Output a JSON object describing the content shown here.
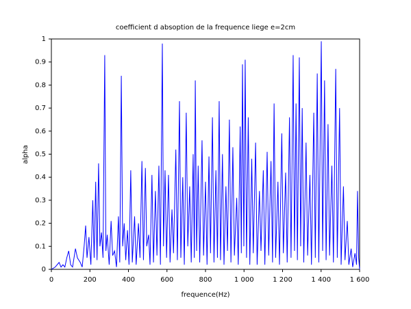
{
  "chart_data": {
    "type": "line",
    "title": "coefficient d absoption de la frequence liege e=2cm",
    "x_label": "frequence(Hz)",
    "y_label": "alpha",
    "xlim": [
      0,
      1600
    ],
    "ylim": [
      0,
      1
    ],
    "xticks": [
      0,
      200,
      400,
      600,
      800,
      {
        "value": 1000,
        "label": "1 000"
      },
      {
        "value": 1200,
        "label": "1 200"
      },
      {
        "value": 1400,
        "label": "1 400"
      },
      {
        "value": 1600,
        "label": "1 600"
      }
    ],
    "yticks": [
      0,
      0.1,
      0.2,
      0.3,
      0.4,
      0.5,
      0.6,
      0.7,
      0.8,
      0.9,
      1
    ],
    "x": [
      0,
      20,
      40,
      50,
      60,
      70,
      80,
      90,
      100,
      110,
      125,
      135,
      150,
      160,
      170,
      178,
      185,
      195,
      205,
      215,
      222,
      230,
      237,
      245,
      252,
      260,
      268,
      277,
      283,
      290,
      300,
      310,
      318,
      328,
      338,
      348,
      355,
      363,
      370,
      378,
      386,
      395,
      403,
      412,
      420,
      432,
      440,
      452,
      460,
      470,
      478,
      488,
      495,
      505,
      512,
      522,
      530,
      540,
      548,
      558,
      566,
      576,
      582,
      590,
      598,
      608,
      616,
      626,
      634,
      646,
      654,
      665,
      672,
      682,
      690,
      700,
      708,
      718,
      726,
      736,
      742,
      747,
      754,
      762,
      770,
      782,
      790,
      800,
      808,
      818,
      826,
      836,
      844,
      854,
      862,
      871,
      878,
      888,
      896,
      906,
      914,
      924,
      932,
      942,
      950,
      962,
      970,
      980,
      986,
      992,
      999,
      1006,
      1013,
      1022,
      1030,
      1040,
      1048,
      1060,
      1068,
      1080,
      1088,
      1100,
      1108,
      1120,
      1128,
      1140,
      1148,
      1156,
      1164,
      1176,
      1184,
      1196,
      1204,
      1216,
      1224,
      1236,
      1244,
      1255,
      1262,
      1270,
      1277,
      1287,
      1294,
      1302,
      1310,
      1322,
      1330,
      1342,
      1350,
      1362,
      1370,
      1380,
      1388,
      1401,
      1408,
      1418,
      1426,
      1436,
      1444,
      1456,
      1464,
      1476,
      1484,
      1496,
      1504,
      1516,
      1524,
      1536,
      1544,
      1556,
      1564,
      1576,
      1584,
      1589,
      1595,
      1600
    ],
    "series": [
      {
        "color": "#0000ff",
        "values": [
          0,
          0.01,
          0.03,
          0.01,
          0.02,
          0.01,
          0.05,
          0.08,
          0.02,
          0.01,
          0.09,
          0.05,
          0.03,
          0.01,
          0.1,
          0.19,
          0.05,
          0.14,
          0.02,
          0.3,
          0.05,
          0.38,
          0.04,
          0.46,
          0.1,
          0.16,
          0.05,
          0.93,
          0.08,
          0.15,
          0.02,
          0.21,
          0.06,
          0.08,
          0.01,
          0.23,
          0.03,
          0.84,
          0.1,
          0.2,
          0.04,
          0.17,
          0.02,
          0.43,
          0.03,
          0.23,
          0.02,
          0.2,
          0.05,
          0.47,
          0.04,
          0.44,
          0.1,
          0.15,
          0.02,
          0.41,
          0.03,
          0.34,
          0.06,
          0.45,
          0.02,
          0.98,
          0.1,
          0.43,
          0.05,
          0.41,
          0.03,
          0.26,
          0.07,
          0.52,
          0.04,
          0.73,
          0.05,
          0.4,
          0.02,
          0.68,
          0.1,
          0.36,
          0.03,
          0.5,
          0.05,
          0.82,
          0.08,
          0.45,
          0.03,
          0.56,
          0.06,
          0.38,
          0.02,
          0.49,
          0.07,
          0.66,
          0.03,
          0.43,
          0.05,
          0.73,
          0.04,
          0.5,
          0.02,
          0.36,
          0.08,
          0.65,
          0.03,
          0.53,
          0.06,
          0.31,
          0.02,
          0.62,
          0.07,
          0.89,
          0.1,
          0.91,
          0.05,
          0.66,
          0.02,
          0.48,
          0.07,
          0.55,
          0.02,
          0.34,
          0.08,
          0.43,
          0.02,
          0.51,
          0.06,
          0.47,
          0.03,
          0.72,
          0.05,
          0.38,
          0.02,
          0.59,
          0.07,
          0.42,
          0.03,
          0.66,
          0.05,
          0.93,
          0.08,
          0.72,
          0.04,
          0.92,
          0.1,
          0.7,
          0.03,
          0.55,
          0.06,
          0.41,
          0.02,
          0.68,
          0.05,
          0.85,
          0.03,
          0.99,
          0.08,
          0.82,
          0.04,
          0.63,
          0.06,
          0.45,
          0.03,
          0.87,
          0.05,
          0.7,
          0.02,
          0.36,
          0.04,
          0.21,
          0.02,
          0.09,
          0.01,
          0.07,
          0.02,
          0.34,
          0.05,
          0
        ]
      }
    ]
  }
}
